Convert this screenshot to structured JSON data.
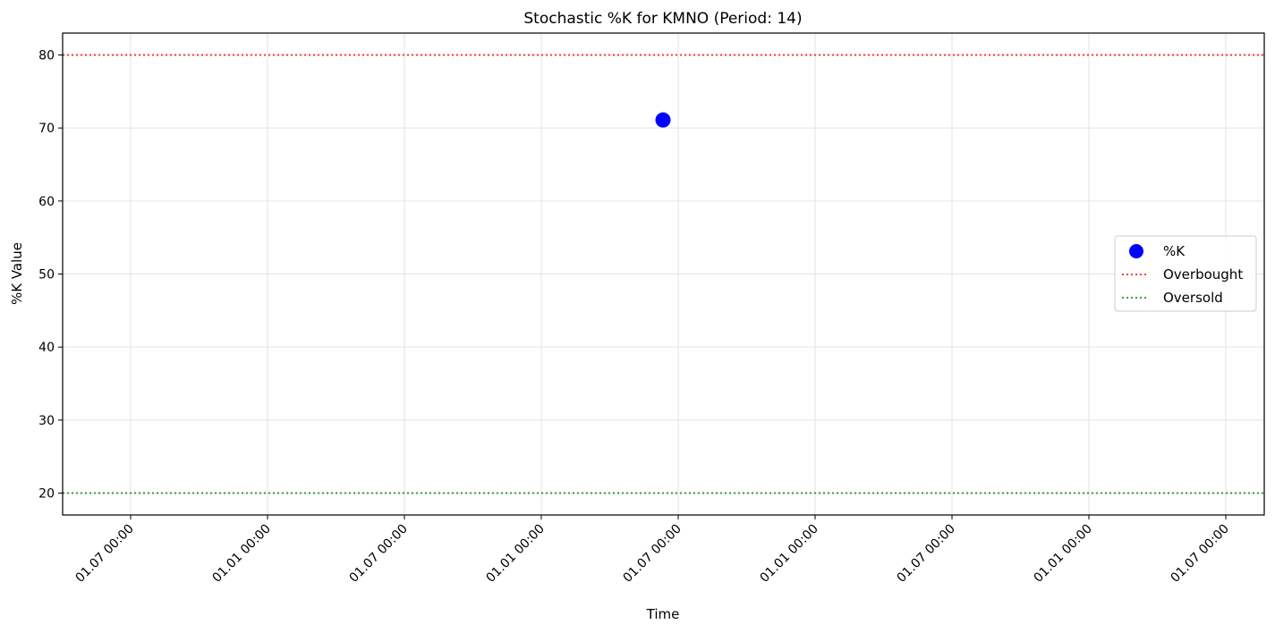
{
  "chart_data": {
    "type": "scatter",
    "title": "Stochastic %K for KMNO (Period: 14)",
    "xlabel": "Time",
    "ylabel": "%K Value",
    "ylim": [
      17,
      83
    ],
    "yticks": [
      20,
      30,
      40,
      50,
      60,
      70,
      80
    ],
    "xticks": [
      "01.07 00:00",
      "01.01 00:00",
      "01.07 00:00",
      "01.01 00:00",
      "01.07 00:00",
      "01.01 00:00",
      "01.07 00:00",
      "01.01 00:00",
      "01.07 00:00"
    ],
    "series": [
      {
        "name": "%K",
        "color": "#0000ff",
        "x": [
          "01.07 00:00"
        ],
        "y": [
          71.1
        ]
      }
    ],
    "reference_lines": [
      {
        "name": "Overbought",
        "y": 80,
        "color": "#ff0000",
        "style": "dotted"
      },
      {
        "name": "Oversold",
        "y": 20,
        "color": "#008000",
        "style": "dotted"
      }
    ],
    "grid": true,
    "legend_position": "center-right"
  }
}
